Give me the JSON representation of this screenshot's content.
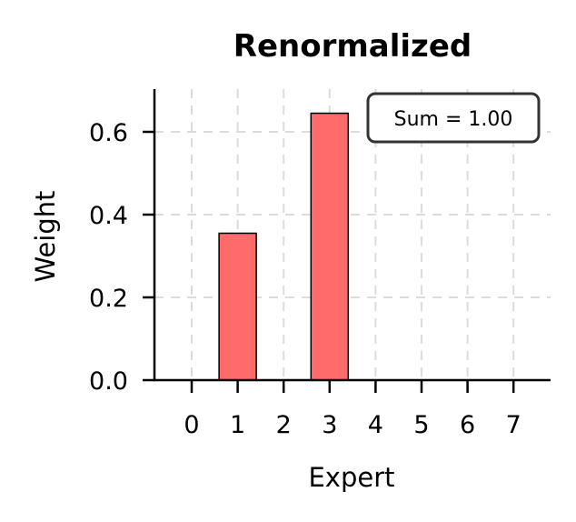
{
  "chart_data": {
    "type": "bar",
    "title": "Renormalized",
    "xlabel": "Expert",
    "ylabel": "Weight",
    "categories": [
      "0",
      "1",
      "2",
      "3",
      "4",
      "5",
      "6",
      "7"
    ],
    "values": [
      0.0,
      0.355,
      0.0,
      0.645,
      0.0,
      0.0,
      0.0,
      0.0
    ],
    "yticks": [
      "0.0",
      "0.2",
      "0.4",
      "0.6"
    ],
    "ylim": [
      0,
      0.7
    ],
    "grid": true,
    "bar_color": "#ff6b6b",
    "bar_edge_color": "#000000",
    "annotation": "Sum = 1.00"
  }
}
